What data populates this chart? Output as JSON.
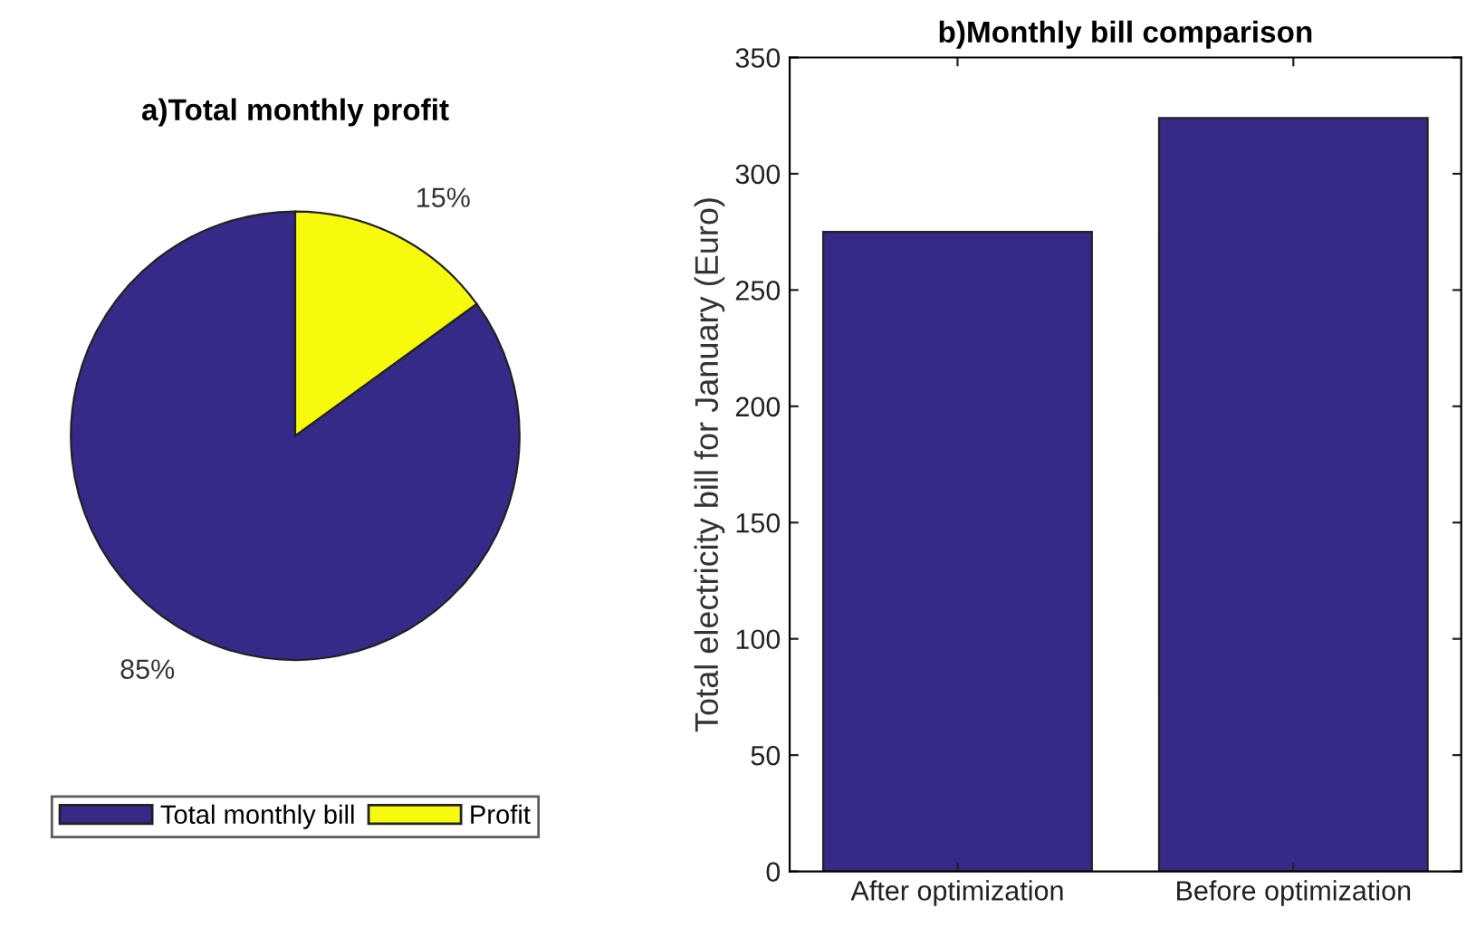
{
  "chart_data": [
    {
      "type": "pie",
      "title": "a)Total monthly profit",
      "categories": [
        "Total monthly bill",
        "Profit"
      ],
      "values": [
        85,
        15
      ],
      "value_labels": [
        "85%",
        "15%"
      ],
      "colors": [
        "#352a87",
        "#f8fa0d"
      ],
      "legend": "bottom"
    },
    {
      "type": "bar",
      "title": "b)Monthly bill comparison",
      "ylabel": "Total electricity bill for January (Euro)",
      "categories": [
        "After optimization",
        "Before optimization"
      ],
      "values": [
        275,
        324
      ],
      "color": "#352a87",
      "ylim": [
        0,
        350
      ],
      "yticks": [
        0,
        50,
        100,
        150,
        200,
        250,
        300,
        350
      ],
      "grid": false
    }
  ]
}
